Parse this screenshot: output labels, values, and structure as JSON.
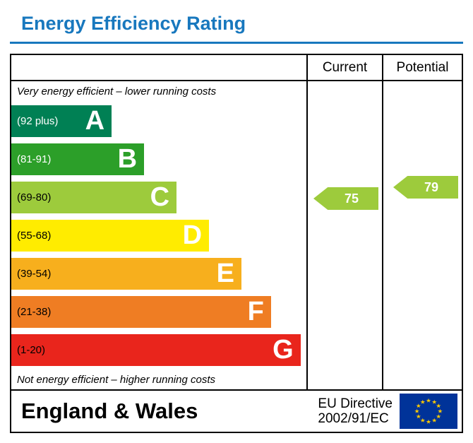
{
  "title": "Energy Efficiency Rating",
  "header": {
    "current": "Current",
    "potential": "Potential"
  },
  "notes": {
    "top": "Very energy efficient – lower running costs",
    "bottom": "Not energy efficient – higher running costs"
  },
  "bands": [
    {
      "range": "(92 plus)",
      "letter": "A",
      "color": "#008054",
      "range_color": "#ffffff",
      "width_pct": 34
    },
    {
      "range": "(81-91)",
      "letter": "B",
      "color": "#2c9f29",
      "range_color": "#ffffff",
      "width_pct": 45
    },
    {
      "range": "(69-80)",
      "letter": "C",
      "color": "#9dcb3c",
      "range_color": "#000000",
      "width_pct": 56
    },
    {
      "range": "(55-68)",
      "letter": "D",
      "color": "#ffec00",
      "range_color": "#000000",
      "width_pct": 67
    },
    {
      "range": "(39-54)",
      "letter": "E",
      "color": "#f7af1d",
      "range_color": "#000000",
      "width_pct": 78
    },
    {
      "range": "(21-38)",
      "letter": "F",
      "color": "#ef7d23",
      "range_color": "#000000",
      "width_pct": 88
    },
    {
      "range": "(1-20)",
      "letter": "G",
      "color": "#e9251c",
      "range_color": "#000000",
      "width_pct": 98
    }
  ],
  "current": {
    "value": 75,
    "band_index": 2,
    "color": "#9dcb3c"
  },
  "potential": {
    "value": 79,
    "band_index": 2,
    "color": "#9dcb3c"
  },
  "footer": {
    "region": "England & Wales",
    "directive_line1": "EU Directive",
    "directive_line2": "2002/91/EC"
  },
  "colors": {
    "accent_blue": "#1878be",
    "arrow_green": "#9dcb3c",
    "border": "#000000"
  },
  "chart_data": {
    "type": "bar",
    "title": "Energy Efficiency Rating",
    "categories": [
      "A (92 plus)",
      "B (81-91)",
      "C (69-80)",
      "D (55-68)",
      "E (39-54)",
      "F (21-38)",
      "G (1-20)"
    ],
    "band_widths_pct": [
      34,
      45,
      56,
      67,
      78,
      88,
      98
    ],
    "series": [
      {
        "name": "Current",
        "value": 75,
        "band": "C"
      },
      {
        "name": "Potential",
        "value": 79,
        "band": "C"
      }
    ],
    "scale_min": 1,
    "scale_max": 100,
    "legend_position": "none",
    "grid": false
  }
}
